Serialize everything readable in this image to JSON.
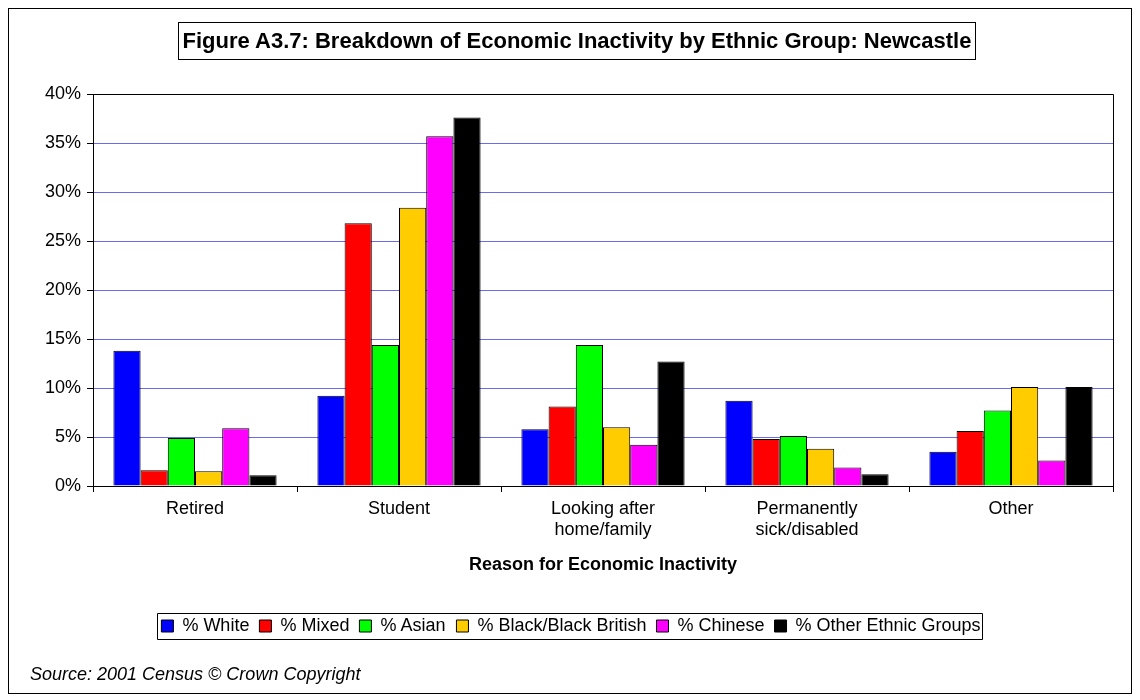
{
  "chart_data": {
    "type": "bar",
    "title": "Figure A3.7: Breakdown of Economic Inactivity by Ethnic Group: Newcastle",
    "xlabel": "Reason for Economic Inactivity",
    "categories": [
      "Retired",
      "Student",
      "Looking after home/family",
      "Permanently sick/disabled",
      "Other"
    ],
    "series": [
      {
        "name": "% White",
        "color": "#0000ff",
        "values": [
          13.8,
          9.2,
          5.8,
          8.7,
          3.5
        ]
      },
      {
        "name": "% Mixed",
        "color": "#ff0000",
        "values": [
          1.6,
          26.8,
          8.1,
          4.8,
          5.6
        ]
      },
      {
        "name": "% Asian",
        "color": "#00ff00",
        "values": [
          4.9,
          14.4,
          14.4,
          5.1,
          7.7
        ]
      },
      {
        "name": "% Black/Black British",
        "color": "#ffcc00",
        "values": [
          1.5,
          28.4,
          6.0,
          3.8,
          10.1
        ]
      },
      {
        "name": "% Chinese",
        "color": "#ff00ff",
        "values": [
          5.9,
          35.7,
          4.2,
          1.9,
          2.6
        ]
      },
      {
        "name": "% Other Ethnic Groups",
        "color": "#000000",
        "values": [
          1.1,
          37.6,
          12.7,
          1.2,
          10.1
        ]
      }
    ],
    "ylim": [
      0,
      40
    ],
    "yticks": [
      {
        "value": 0,
        "label": "0%"
      },
      {
        "value": 5,
        "label": "5%"
      },
      {
        "value": 10,
        "label": "10%"
      },
      {
        "value": 15,
        "label": "15%"
      },
      {
        "value": 20,
        "label": "20%"
      },
      {
        "value": 25,
        "label": "25%"
      },
      {
        "value": 30,
        "label": "30%"
      },
      {
        "value": 35,
        "label": "35%"
      },
      {
        "value": 40,
        "label": "40%"
      }
    ],
    "grid": "y",
    "legend": "bottom",
    "annotations": [
      "Source: 2001 Census © Crown Copyright"
    ]
  }
}
